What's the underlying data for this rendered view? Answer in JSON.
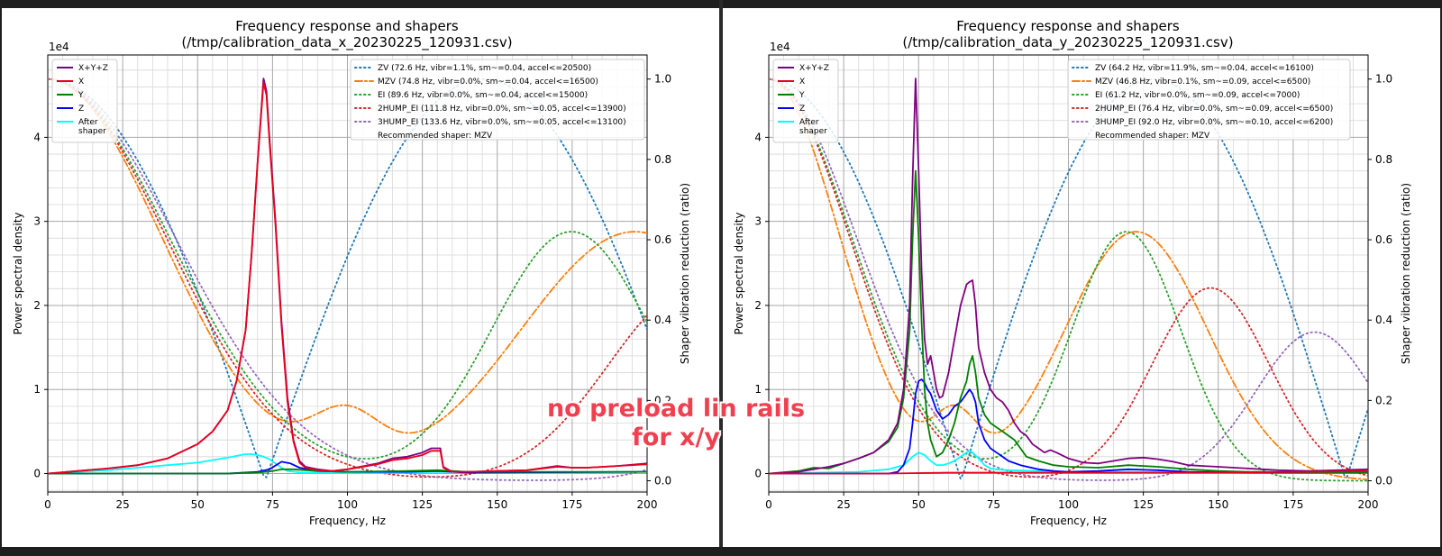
{
  "chart_data": [
    {
      "type": "line",
      "title": "Frequency response and shapers",
      "subtitle": "(/tmp/calibration_data_x_20230225_120931.csv)",
      "xlabel": "Frequency, Hz",
      "ylabel": "Power spectral density",
      "y2label": "Shaper vibration reduction (ratio)",
      "yexp": "1e4",
      "xlim": [
        0,
        200
      ],
      "ylim": [
        -0.22,
        4.98
      ],
      "y2lim": [
        -0.028,
        1.06
      ],
      "xticks": [
        0,
        25,
        50,
        75,
        100,
        125,
        150,
        175,
        200
      ],
      "yticks": [
        0,
        1,
        2,
        3,
        4
      ],
      "y2ticks": [
        0.0,
        0.2,
        0.4,
        0.6,
        0.8,
        1.0
      ],
      "grid": true,
      "psd_series": [
        {
          "name": "X+Y+Z",
          "color": "#800080",
          "x": [
            0,
            10,
            20,
            30,
            40,
            50,
            55,
            60,
            63,
            66,
            68,
            70,
            72,
            73,
            74,
            76,
            78,
            80,
            82,
            84,
            86,
            90,
            95,
            100,
            110,
            115,
            120,
            125,
            128,
            131,
            132,
            135,
            140,
            150,
            160,
            170,
            175,
            180,
            190,
            200
          ],
          "y": [
            0,
            0.03,
            0.06,
            0.1,
            0.18,
            0.35,
            0.5,
            0.75,
            1.1,
            1.7,
            2.6,
            3.7,
            4.7,
            4.55,
            4.0,
            3.0,
            1.8,
            0.9,
            0.4,
            0.15,
            0.08,
            0.05,
            0.03,
            0.05,
            0.12,
            0.18,
            0.2,
            0.25,
            0.3,
            0.3,
            0.08,
            0.02,
            0.02,
            0.03,
            0.04,
            0.09,
            0.07,
            0.07,
            0.09,
            0.12
          ]
        },
        {
          "name": "X",
          "color": "#e8001c",
          "x": [
            0,
            10,
            20,
            30,
            40,
            50,
            55,
            60,
            63,
            66,
            68,
            70,
            72,
            73,
            74,
            76,
            78,
            80,
            82,
            84,
            86,
            90,
            95,
            100,
            110,
            115,
            120,
            125,
            128,
            131,
            132,
            135,
            140,
            150,
            160,
            170,
            175,
            180,
            190,
            200
          ],
          "y": [
            0,
            0.03,
            0.06,
            0.1,
            0.18,
            0.35,
            0.5,
            0.75,
            1.1,
            1.7,
            2.6,
            3.7,
            4.65,
            4.5,
            3.95,
            2.95,
            1.75,
            0.85,
            0.38,
            0.13,
            0.07,
            0.04,
            0.03,
            0.05,
            0.11,
            0.16,
            0.18,
            0.22,
            0.27,
            0.27,
            0.07,
            0.02,
            0.02,
            0.03,
            0.04,
            0.08,
            0.07,
            0.07,
            0.09,
            0.11
          ]
        },
        {
          "name": "Y",
          "color": "#008000",
          "x": [
            0,
            60,
            70,
            75,
            78,
            82,
            90,
            100,
            120,
            130,
            140,
            200
          ],
          "y": [
            0,
            0,
            0.01,
            0.03,
            0.05,
            0.05,
            0.03,
            0.02,
            0.03,
            0.04,
            0.02,
            0.02
          ]
        },
        {
          "name": "Z",
          "color": "#0000ff",
          "x": [
            0,
            60,
            70,
            74,
            78,
            81,
            84,
            90,
            100,
            120,
            130,
            140,
            200
          ],
          "y": [
            0,
            0,
            0.02,
            0.05,
            0.14,
            0.12,
            0.07,
            0.03,
            0.02,
            0.02,
            0.03,
            0.01,
            0.02
          ]
        },
        {
          "name": "After\nshaper",
          "color": "#00ffff",
          "x": [
            0,
            10,
            20,
            30,
            40,
            50,
            55,
            60,
            63,
            66,
            68,
            70,
            72,
            74,
            76,
            78,
            80,
            85,
            90,
            95,
            100,
            110,
            130,
            150,
            200
          ],
          "y": [
            0,
            0.02,
            0.04,
            0.07,
            0.1,
            0.13,
            0.16,
            0.19,
            0.21,
            0.23,
            0.23,
            0.22,
            0.2,
            0.17,
            0.12,
            0.07,
            0.03,
            0.01,
            0.01,
            0.005,
            0.005,
            0.005,
            0.02,
            0.01,
            0.02
          ]
        }
      ],
      "shaper_series": [
        {
          "name": "ZV (72.6 Hz, vibr=1.1%, sm~=0.04, accel<=20500)",
          "color": "#1f77b4",
          "dash": "dotted",
          "freq": 72.6,
          "shape": "zv"
        },
        {
          "name": "MZV (74.8 Hz, vibr=0.0%, sm~=0.04, accel<=16500)",
          "color": "#ff7f0e",
          "dash": "dashdot",
          "freq": 74.8,
          "shape": "mzv"
        },
        {
          "name": "EI (89.6 Hz, vibr=0.0%, sm~=0.04, accel<=15000)",
          "color": "#2ca02c",
          "dash": "dotted",
          "freq": 89.6,
          "shape": "ei"
        },
        {
          "name": "2HUMP_EI (111.8 Hz, vibr=0.0%, sm~=0.05, accel<=13900)",
          "color": "#d62728",
          "dash": "dotted",
          "freq": 111.8,
          "shape": "2hump_ei"
        },
        {
          "name": "3HUMP_EI (133.6 Hz, vibr=0.0%, sm~=0.05, accel<=13100)",
          "color": "#9467bd",
          "dash": "dotted",
          "freq": 133.6,
          "shape": "3hump_ei"
        }
      ],
      "recommended": "Recommended shaper: MZV"
    },
    {
      "type": "line",
      "title": "Frequency response and shapers",
      "subtitle": "(/tmp/calibration_data_y_20230225_120931.csv)",
      "xlabel": "Frequency, Hz",
      "ylabel": "Power spectral density",
      "y2label": "Shaper vibration reduction (ratio)",
      "yexp": "1e4",
      "xlim": [
        0,
        200
      ],
      "ylim": [
        -0.22,
        4.98
      ],
      "y2lim": [
        -0.028,
        1.06
      ],
      "xticks": [
        0,
        25,
        50,
        75,
        100,
        125,
        150,
        175,
        200
      ],
      "yticks": [
        0,
        1,
        2,
        3,
        4
      ],
      "y2ticks": [
        0.0,
        0.2,
        0.4,
        0.6,
        0.8,
        1.0
      ],
      "grid": true,
      "psd_series": [
        {
          "name": "X+Y+Z",
          "color": "#800080",
          "x": [
            0,
            10,
            15,
            20,
            25,
            30,
            35,
            40,
            43,
            45,
            47,
            48,
            49,
            50,
            51,
            52,
            53,
            54,
            55,
            56,
            57,
            58,
            60,
            62,
            64,
            66,
            67,
            68,
            69,
            70,
            72,
            74,
            76,
            78,
            80,
            82,
            84,
            86,
            88,
            90,
            92,
            94,
            96,
            100,
            105,
            110,
            115,
            120,
            125,
            130,
            135,
            140,
            145,
            150,
            160,
            170,
            180,
            190,
            200
          ],
          "y": [
            0,
            0.02,
            0.05,
            0.08,
            0.12,
            0.18,
            0.25,
            0.4,
            0.6,
            1.0,
            2.0,
            3.5,
            4.7,
            3.6,
            2.4,
            1.6,
            1.3,
            1.4,
            1.2,
            1.0,
            0.9,
            0.92,
            1.2,
            1.6,
            2.0,
            2.25,
            2.28,
            2.3,
            2.0,
            1.5,
            1.2,
            1.0,
            0.9,
            0.85,
            0.75,
            0.6,
            0.5,
            0.45,
            0.35,
            0.3,
            0.25,
            0.28,
            0.25,
            0.18,
            0.13,
            0.12,
            0.15,
            0.18,
            0.19,
            0.17,
            0.14,
            0.1,
            0.09,
            0.08,
            0.06,
            0.04,
            0.03,
            0.04,
            0.05
          ]
        },
        {
          "name": "X",
          "color": "#e8001c",
          "x": [
            0,
            40,
            60,
            80,
            100,
            120,
            150,
            180,
            200
          ],
          "y": [
            0,
            0,
            0.01,
            0.01,
            0.01,
            0.01,
            0.01,
            0.02,
            0.03
          ]
        },
        {
          "name": "Y",
          "color": "#008000",
          "x": [
            0,
            10,
            15,
            20,
            25,
            30,
            35,
            40,
            43,
            45,
            47,
            48,
            49,
            50,
            51,
            52,
            53,
            54,
            55,
            56,
            58,
            60,
            62,
            64,
            66,
            67,
            68,
            69,
            70,
            72,
            74,
            76,
            78,
            80,
            82,
            84,
            86,
            90,
            95,
            100,
            110,
            120,
            130,
            140,
            150,
            160,
            200
          ],
          "y": [
            0,
            0.03,
            0.07,
            0.06,
            0.12,
            0.18,
            0.25,
            0.38,
            0.55,
            0.9,
            1.7,
            2.8,
            3.6,
            2.8,
            1.8,
            1.0,
            0.6,
            0.4,
            0.3,
            0.2,
            0.25,
            0.4,
            0.6,
            0.9,
            1.1,
            1.3,
            1.4,
            1.2,
            0.9,
            0.7,
            0.6,
            0.55,
            0.5,
            0.45,
            0.4,
            0.3,
            0.2,
            0.15,
            0.1,
            0.08,
            0.07,
            0.1,
            0.08,
            0.05,
            0.03,
            0.02,
            0.01
          ]
        },
        {
          "name": "Z",
          "color": "#0000ff",
          "x": [
            0,
            40,
            43,
            45,
            47,
            48,
            49,
            50,
            51,
            52,
            53,
            54,
            55,
            56,
            57,
            58,
            60,
            62,
            64,
            66,
            67,
            68,
            69,
            70,
            72,
            74,
            76,
            78,
            80,
            84,
            90,
            95,
            100,
            110,
            120,
            130,
            140,
            160,
            200
          ],
          "y": [
            0,
            0,
            0.02,
            0.1,
            0.3,
            0.6,
            0.95,
            1.1,
            1.12,
            1.08,
            1.0,
            0.95,
            0.85,
            0.75,
            0.7,
            0.65,
            0.7,
            0.8,
            0.85,
            0.95,
            1.0,
            0.95,
            0.85,
            0.6,
            0.4,
            0.3,
            0.25,
            0.2,
            0.15,
            0.1,
            0.05,
            0.03,
            0.02,
            0.03,
            0.05,
            0.04,
            0.02,
            0.01,
            0.01
          ]
        },
        {
          "name": "After\nshaper",
          "color": "#00ffff",
          "x": [
            0,
            30,
            40,
            45,
            48,
            50,
            52,
            54,
            56,
            58,
            60,
            62,
            64,
            66,
            67,
            68,
            70,
            72,
            74,
            76,
            80,
            90,
            100,
            120,
            150,
            200
          ],
          "y": [
            0,
            0.02,
            0.05,
            0.1,
            0.2,
            0.25,
            0.22,
            0.15,
            0.1,
            0.1,
            0.12,
            0.15,
            0.2,
            0.25,
            0.27,
            0.25,
            0.18,
            0.1,
            0.06,
            0.05,
            0.04,
            0.03,
            0.02,
            0.02,
            0.01,
            0.01
          ]
        }
      ],
      "shaper_series": [
        {
          "name": "ZV (64.2 Hz, vibr=11.9%, sm~=0.04, accel<=16100)",
          "color": "#1f77b4",
          "dash": "dotted",
          "freq": 64.2,
          "shape": "zv"
        },
        {
          "name": "MZV (46.8 Hz, vibr=0.1%, sm~=0.09, accel<=6500)",
          "color": "#ff7f0e",
          "dash": "dashdot",
          "freq": 46.8,
          "shape": "mzv"
        },
        {
          "name": "EI (61.2 Hz, vibr=0.0%, sm~=0.09, accel<=7000)",
          "color": "#2ca02c",
          "dash": "dotted",
          "freq": 61.2,
          "shape": "ei"
        },
        {
          "name": "2HUMP_EI (76.4 Hz, vibr=0.0%, sm~=0.09, accel<=6500)",
          "color": "#d62728",
          "dash": "dotted",
          "freq": 76.4,
          "shape": "2hump_ei"
        },
        {
          "name": "3HUMP_EI (92.0 Hz, vibr=0.0%, sm~=0.10, accel<=6200)",
          "color": "#9467bd",
          "dash": "dotted",
          "freq": 92.0,
          "shape": "3hump_ei"
        }
      ],
      "recommended": "Recommended shaper: MZV"
    }
  ],
  "annotation": {
    "line1": "no preload lin rails",
    "line2": "for x/y",
    "color": "#f04050"
  }
}
